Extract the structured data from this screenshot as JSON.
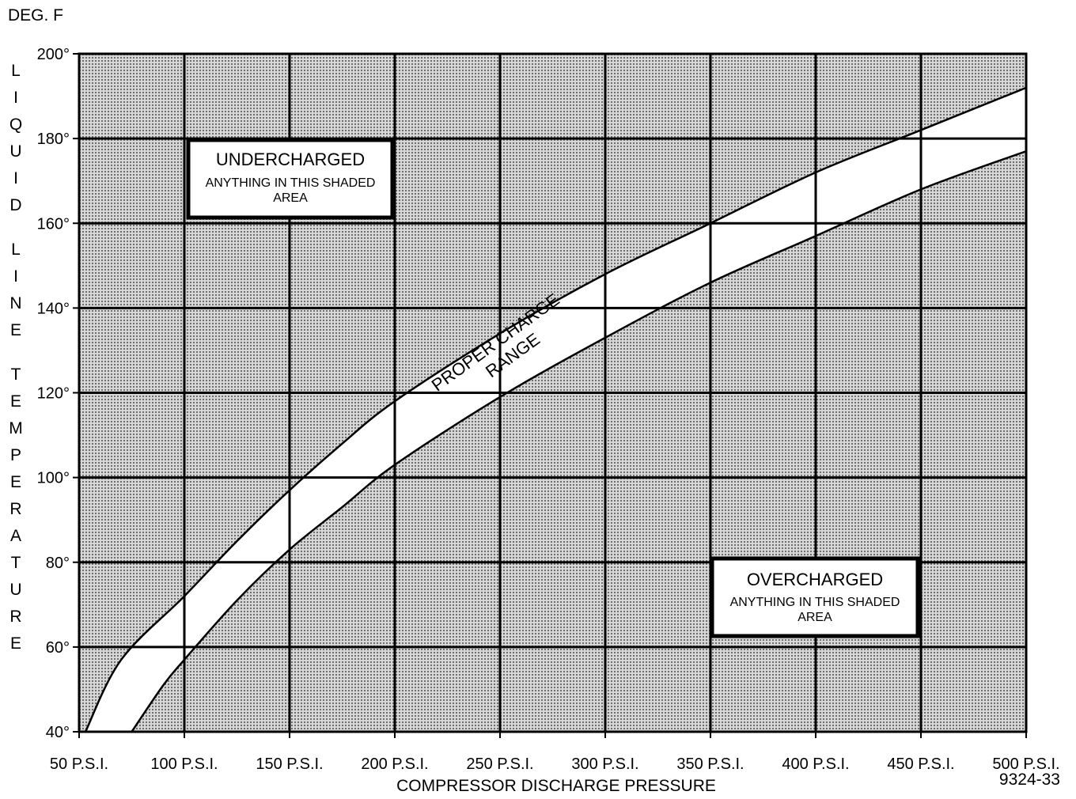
{
  "chart_data": {
    "type": "area",
    "title": "",
    "unit_label": "DEG. F",
    "xlabel": "COMPRESSOR DISCHARGE PRESSURE",
    "ylabel": "LIQUID LINE TEMPERATURE",
    "xlim": [
      50,
      500
    ],
    "ylim": [
      40,
      200
    ],
    "grid": true,
    "x_ticks": [
      50,
      100,
      150,
      200,
      250,
      300,
      350,
      400,
      450,
      500
    ],
    "y_ticks": [
      40,
      60,
      80,
      100,
      120,
      140,
      160,
      180,
      200
    ],
    "x_tick_labels": [
      "50 P.S.I.",
      "100 P.S.I.",
      "150 P.S.I.",
      "200 P.S.I.",
      "250 P.S.I.",
      "300 P.S.I.",
      "350 P.S.I.",
      "400 P.S.I.",
      "450 P.S.I.",
      "500 P.S.I."
    ],
    "y_tick_labels": [
      "40°",
      "60°",
      "80°",
      "100°",
      "120°",
      "140°",
      "160°",
      "180°",
      "200°"
    ],
    "series": [
      {
        "x": [
          53,
          70,
          100,
          125,
          150,
          175,
          200,
          250,
          300,
          350,
          400,
          450,
          500
        ],
        "y": [
          40,
          57,
          72,
          85,
          97,
          108,
          118,
          134,
          148,
          160,
          172,
          182,
          192
        ]
      },
      {
        "x": [
          75,
          90,
          100,
          125,
          150,
          175,
          200,
          250,
          300,
          350,
          400,
          450,
          500
        ],
        "y": [
          40,
          51,
          57,
          71,
          83,
          93,
          103,
          119,
          133,
          146,
          157,
          168,
          177
        ]
      }
    ],
    "annotations": {
      "undercharged": {
        "title": "UNDERCHARGED",
        "text": "ANYTHING IN THIS SHADED AREA"
      },
      "overcharged": {
        "title": "OVERCHARGED",
        "text": "ANYTHING IN THIS SHADED AREA"
      },
      "band_line1": "PROPER CHARGE",
      "band_line2": "RANGE"
    },
    "figure_id": "9324-33"
  }
}
